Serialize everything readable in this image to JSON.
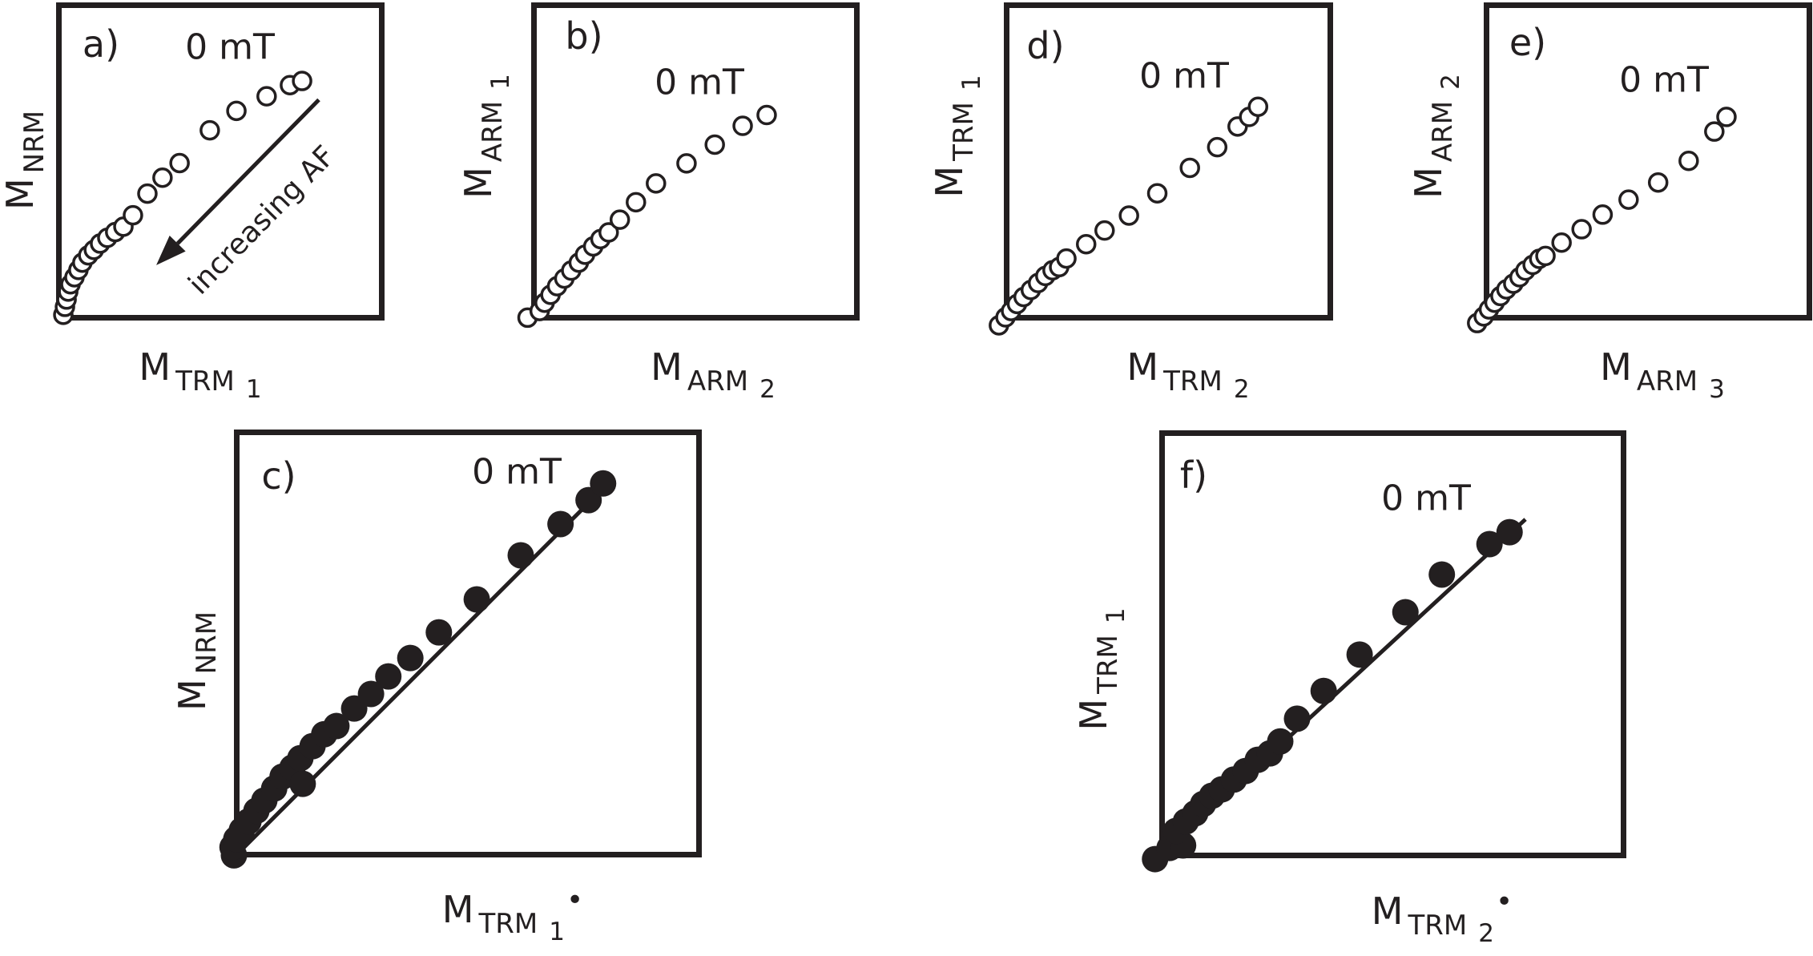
{
  "figure": {
    "background": "#ffffff",
    "ink_color": "#231f20",
    "description_visible_text_only": true
  },
  "panels": {
    "a": {
      "letter": "a)",
      "field_label": "0 mT",
      "annotation": "increasing AF",
      "y_axis": {
        "main": "M",
        "group": "NRM",
        "index": "",
        "sup": ""
      },
      "x_axis": {
        "main": "M",
        "group": "TRM",
        "index": "1",
        "sup": ""
      }
    },
    "b": {
      "letter": "b)",
      "field_label": "0 mT",
      "y_axis": {
        "main": "M",
        "group": "ARM",
        "index": "1",
        "sup": ""
      },
      "x_axis": {
        "main": "M",
        "group": "ARM",
        "index": "2",
        "sup": ""
      }
    },
    "d": {
      "letter": "d)",
      "field_label": "0 mT",
      "y_axis": {
        "main": "M",
        "group": "TRM",
        "index": "1",
        "sup": ""
      },
      "x_axis": {
        "main": "M",
        "group": "TRM",
        "index": "2",
        "sup": ""
      }
    },
    "e": {
      "letter": "e)",
      "field_label": "0 mT",
      "y_axis": {
        "main": "M",
        "group": "ARM",
        "index": "2",
        "sup": ""
      },
      "x_axis": {
        "main": "M",
        "group": "ARM",
        "index": "3",
        "sup": ""
      }
    },
    "c": {
      "letter": "c)",
      "field_label": "0 mT",
      "y_axis": {
        "main": "M",
        "group": "NRM",
        "index": "",
        "sup": ""
      },
      "x_axis": {
        "main": "M",
        "group": "TRM",
        "index": "1",
        "sup": "•"
      }
    },
    "f": {
      "letter": "f)",
      "field_label": "0 mT",
      "y_axis": {
        "main": "M",
        "group": "TRM",
        "index": "1",
        "sup": ""
      },
      "x_axis": {
        "main": "M",
        "group": "TRM",
        "index": "2",
        "sup": "•"
      }
    }
  },
  "chart_data": [
    {
      "panel": "a",
      "type": "scatter",
      "marker": "open-circle",
      "xlabel": "M_TRM1",
      "ylabel": "M_NRM",
      "point_label": "0 mT",
      "axes": "unlabeled, arbitrary units, normalized 0-1",
      "xlim": [
        0,
        1
      ],
      "ylim": [
        0,
        1
      ],
      "grid": false,
      "points": [
        [
          0.022,
          0.018
        ],
        [
          0.027,
          0.043
        ],
        [
          0.032,
          0.066
        ],
        [
          0.037,
          0.091
        ],
        [
          0.044,
          0.114
        ],
        [
          0.056,
          0.136
        ],
        [
          0.068,
          0.159
        ],
        [
          0.08,
          0.182
        ],
        [
          0.098,
          0.205
        ],
        [
          0.115,
          0.222
        ],
        [
          0.134,
          0.242
        ],
        [
          0.156,
          0.26
        ],
        [
          0.18,
          0.278
        ],
        [
          0.205,
          0.295
        ],
        [
          0.234,
          0.331
        ],
        [
          0.278,
          0.399
        ],
        [
          0.324,
          0.449
        ],
        [
          0.376,
          0.495
        ],
        [
          0.468,
          0.598
        ],
        [
          0.549,
          0.659
        ],
        [
          0.641,
          0.705
        ],
        [
          0.712,
          0.74
        ],
        [
          0.749,
          0.753
        ]
      ],
      "arrow": {
        "from": [
          0.8,
          0.694
        ],
        "to": [
          0.305,
          0.174
        ]
      },
      "annotation_text": "increasing AF"
    },
    {
      "panel": "b",
      "type": "scatter",
      "marker": "open-circle",
      "xlabel": "M_ARM2",
      "ylabel": "M_ARM1",
      "point_label": "0 mT",
      "axes": "unlabeled, arbitrary units, normalized 0-1",
      "xlim": [
        0,
        1
      ],
      "ylim": [
        0,
        1
      ],
      "grid": false,
      "points": [
        [
          -0.011,
          0.009
        ],
        [
          0.026,
          0.03
        ],
        [
          0.041,
          0.056
        ],
        [
          0.059,
          0.081
        ],
        [
          0.079,
          0.108
        ],
        [
          0.101,
          0.132
        ],
        [
          0.122,
          0.157
        ],
        [
          0.145,
          0.182
        ],
        [
          0.164,
          0.207
        ],
        [
          0.189,
          0.233
        ],
        [
          0.211,
          0.256
        ],
        [
          0.236,
          0.277
        ],
        [
          0.27,
          0.317
        ],
        [
          0.319,
          0.372
        ],
        [
          0.38,
          0.431
        ],
        [
          0.473,
          0.494
        ],
        [
          0.559,
          0.553
        ],
        [
          0.644,
          0.612
        ],
        [
          0.717,
          0.646
        ]
      ]
    },
    {
      "panel": "d",
      "type": "scatter",
      "marker": "open-circle",
      "xlabel": "M_TRM2",
      "ylabel": "M_TRM1",
      "point_label": "0 mT",
      "axes": "unlabeled, arbitrary units, normalized 0-1",
      "xlim": [
        0,
        1
      ],
      "ylim": [
        0,
        1
      ],
      "grid": false,
      "points": [
        [
          -0.015,
          -0.015
        ],
        [
          0.005,
          0.01
        ],
        [
          0.022,
          0.03
        ],
        [
          0.04,
          0.052
        ],
        [
          0.06,
          0.074
        ],
        [
          0.082,
          0.096
        ],
        [
          0.104,
          0.118
        ],
        [
          0.126,
          0.14
        ],
        [
          0.148,
          0.158
        ],
        [
          0.168,
          0.168
        ],
        [
          0.19,
          0.195
        ],
        [
          0.25,
          0.24
        ],
        [
          0.306,
          0.283
        ],
        [
          0.38,
          0.33
        ],
        [
          0.466,
          0.4
        ],
        [
          0.565,
          0.48
        ],
        [
          0.648,
          0.545
        ],
        [
          0.71,
          0.61
        ],
        [
          0.745,
          0.64
        ],
        [
          0.772,
          0.672
        ]
      ]
    },
    {
      "panel": "e",
      "type": "scatter",
      "marker": "open-circle",
      "xlabel": "M_ARM3",
      "ylabel": "M_ARM2",
      "point_label": "0 mT",
      "axes": "unlabeled, arbitrary units, normalized 0-1",
      "xlim": [
        0,
        1
      ],
      "ylim": [
        0,
        1
      ],
      "grid": false,
      "points": [
        [
          -0.02,
          -0.008
        ],
        [
          0.0,
          0.013
        ],
        [
          0.016,
          0.035
        ],
        [
          0.033,
          0.056
        ],
        [
          0.051,
          0.077
        ],
        [
          0.069,
          0.098
        ],
        [
          0.09,
          0.116
        ],
        [
          0.109,
          0.136
        ],
        [
          0.127,
          0.157
        ],
        [
          0.149,
          0.175
        ],
        [
          0.169,
          0.194
        ],
        [
          0.188,
          0.203
        ],
        [
          0.237,
          0.245
        ],
        [
          0.298,
          0.287
        ],
        [
          0.362,
          0.333
        ],
        [
          0.441,
          0.38
        ],
        [
          0.531,
          0.434
        ],
        [
          0.624,
          0.502
        ],
        [
          0.702,
          0.594
        ],
        [
          0.739,
          0.64
        ]
      ]
    },
    {
      "panel": "c",
      "type": "scatter",
      "marker": "filled-circle",
      "xlabel": "M_TRM1*",
      "ylabel": "M_NRM",
      "point_label": "0 mT",
      "axes": "unlabeled, arbitrary units, normalized 0-1",
      "xlim": [
        0,
        1
      ],
      "ylim": [
        0,
        1
      ],
      "grid": false,
      "points": [
        [
          0.0,
          0.005
        ],
        [
          -0.003,
          0.024
        ],
        [
          0.005,
          0.043
        ],
        [
          0.017,
          0.064
        ],
        [
          0.031,
          0.084
        ],
        [
          0.048,
          0.109
        ],
        [
          0.065,
          0.133
        ],
        [
          0.086,
          0.161
        ],
        [
          0.104,
          0.189
        ],
        [
          0.125,
          0.21
        ],
        [
          0.147,
          0.172
        ],
        [
          0.142,
          0.232
        ],
        [
          0.168,
          0.26
        ],
        [
          0.193,
          0.288
        ],
        [
          0.219,
          0.307
        ],
        [
          0.257,
          0.348
        ],
        [
          0.293,
          0.382
        ],
        [
          0.33,
          0.423
        ],
        [
          0.377,
          0.466
        ],
        [
          0.438,
          0.526
        ],
        [
          0.519,
          0.603
        ],
        [
          0.613,
          0.706
        ],
        [
          0.698,
          0.779
        ],
        [
          0.758,
          0.835
        ],
        [
          0.789,
          0.874
        ]
      ],
      "trend_line": [
        [
          0.0,
          0.0
        ],
        [
          0.776,
          0.848
        ]
      ]
    },
    {
      "panel": "f",
      "type": "scatter",
      "marker": "filled-circle",
      "xlabel": "M_TRM2*",
      "ylabel": "M_TRM1",
      "point_label": "0 mT",
      "axes": "unlabeled, arbitrary units, normalized 0-1",
      "xlim": [
        0,
        1
      ],
      "ylim": [
        0,
        1
      ],
      "grid": false,
      "points": [
        [
          -0.009,
          -0.002
        ],
        [
          0.022,
          0.024
        ],
        [
          0.051,
          0.03
        ],
        [
          0.036,
          0.064
        ],
        [
          0.057,
          0.086
        ],
        [
          0.077,
          0.105
        ],
        [
          0.094,
          0.127
        ],
        [
          0.113,
          0.146
        ],
        [
          0.134,
          0.161
        ],
        [
          0.16,
          0.184
        ],
        [
          0.185,
          0.204
        ],
        [
          0.211,
          0.23
        ],
        [
          0.237,
          0.245
        ],
        [
          0.259,
          0.273
        ],
        [
          0.295,
          0.326
        ],
        [
          0.352,
          0.391
        ],
        [
          0.429,
          0.476
        ],
        [
          0.527,
          0.575
        ],
        [
          0.605,
          0.663
        ],
        [
          0.707,
          0.734
        ],
        [
          0.75,
          0.762
        ]
      ],
      "trend_line": [
        [
          0.002,
          0.006
        ],
        [
          0.784,
          0.792
        ]
      ]
    }
  ]
}
